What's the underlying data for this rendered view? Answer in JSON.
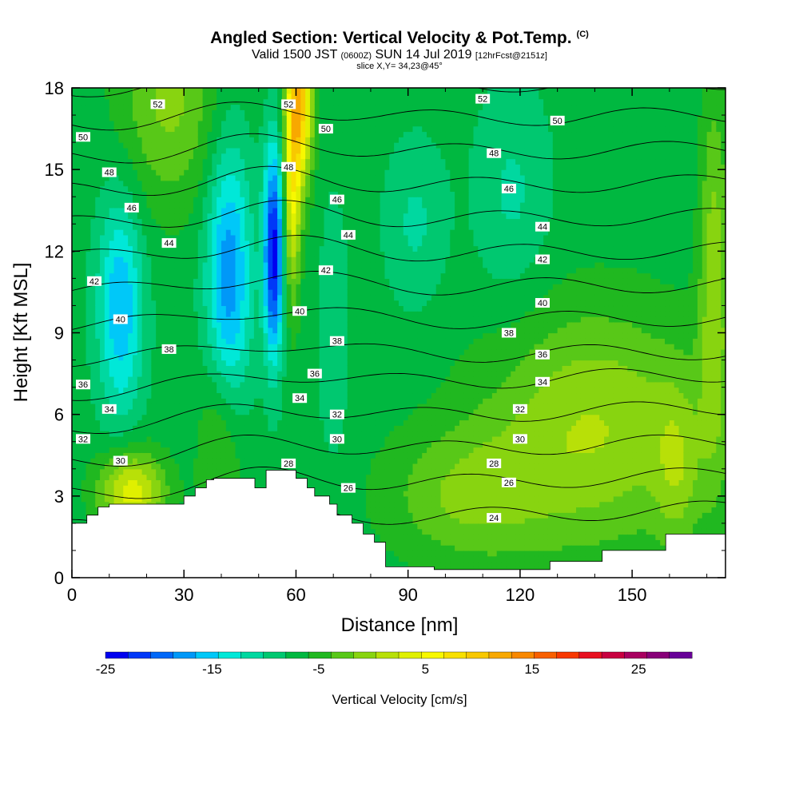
{
  "header": {
    "title": "Angled Section: Vertical Velocity & Pot.Temp.",
    "title_mark": "(C)",
    "valid_a": "Valid 1500 JST",
    "valid_b": "(0600Z)",
    "valid_c": "SUN 14 Jul 2019",
    "valid_d": "[12hrFcst@2151z]",
    "slice": "slice X,Y= 34,23@45°"
  },
  "chart_data": {
    "type": "heatmap",
    "xlabel": "Distance [nm]",
    "ylabel": "Height [Kft MSL]",
    "xlim": [
      0,
      175
    ],
    "ylim": [
      0,
      18
    ],
    "xticks": [
      0,
      30,
      60,
      90,
      120,
      150
    ],
    "yticks": [
      0,
      3,
      6,
      9,
      12,
      15,
      18
    ],
    "colorbar": {
      "label": "Vertical Velocity [cm/s]",
      "tick_labels": [
        "-25",
        "-15",
        "-5",
        "5",
        "15",
        "25"
      ],
      "tick_values": [
        -25,
        -15,
        -5,
        5,
        15,
        25
      ],
      "range": [
        -25,
        30
      ],
      "bin_width": 2.5,
      "colors": [
        "#0000f0",
        "#0038f8",
        "#0068f8",
        "#0098f8",
        "#00c8f8",
        "#00e8d8",
        "#00d8a0",
        "#00c870",
        "#00b840",
        "#20b820",
        "#58c818",
        "#88d410",
        "#b8e008",
        "#e0f000",
        "#f8f800",
        "#f8e000",
        "#f8c800",
        "#f8a800",
        "#f88800",
        "#f86000",
        "#f83800",
        "#e81020",
        "#c80040",
        "#a80060",
        "#880078",
        "#680098"
      ]
    },
    "terrain_profile": {
      "x": [
        0,
        4,
        4,
        7,
        7,
        10,
        10,
        30,
        30,
        33,
        33,
        36,
        36,
        38,
        38,
        49,
        49,
        52,
        52,
        60,
        60,
        63,
        63,
        65,
        65,
        69,
        69,
        71,
        71,
        75,
        75,
        78,
        78,
        81,
        81,
        84,
        84,
        97,
        97,
        128,
        128,
        142,
        142,
        159,
        159,
        175
      ],
      "y": [
        2,
        2,
        2.3,
        2.3,
        2.6,
        2.6,
        2.7,
        2.7,
        3.0,
        3.0,
        3.3,
        3.3,
        3.6,
        3.6,
        3.65,
        3.65,
        3.3,
        3.3,
        3.95,
        3.95,
        3.65,
        3.65,
        3.3,
        3.3,
        3.0,
        3.0,
        2.7,
        2.7,
        2.3,
        2.3,
        2.0,
        2.0,
        1.6,
        1.6,
        1.3,
        1.3,
        0.4,
        0.4,
        0.3,
        0.3,
        0.6,
        0.6,
        1.0,
        1.0,
        1.6,
        1.6
      ]
    },
    "theta_contours": {
      "levels": [
        24,
        26,
        28,
        30,
        32,
        34,
        36,
        38,
        40,
        42,
        44,
        46,
        48,
        50,
        52
      ],
      "interval": 2,
      "labels": [
        {
          "value": "24",
          "x": 113,
          "y": 2.2
        },
        {
          "value": "26",
          "x": 74,
          "y": 3.3
        },
        {
          "value": "26",
          "x": 117,
          "y": 3.5
        },
        {
          "value": "28",
          "x": 58,
          "y": 4.2
        },
        {
          "value": "28",
          "x": 113,
          "y": 4.2
        },
        {
          "value": "30",
          "x": 13,
          "y": 4.3
        },
        {
          "value": "30",
          "x": 71,
          "y": 5.1
        },
        {
          "value": "30",
          "x": 120,
          "y": 5.1
        },
        {
          "value": "32",
          "x": 3,
          "y": 5.1
        },
        {
          "value": "32",
          "x": 71,
          "y": 6.0
        },
        {
          "value": "32",
          "x": 120,
          "y": 6.2
        },
        {
          "value": "34",
          "x": 10,
          "y": 6.2
        },
        {
          "value": "34",
          "x": 61,
          "y": 6.6
        },
        {
          "value": "34",
          "x": 126,
          "y": 7.2
        },
        {
          "value": "36",
          "x": 3,
          "y": 7.1
        },
        {
          "value": "36",
          "x": 65,
          "y": 7.5
        },
        {
          "value": "36",
          "x": 126,
          "y": 8.2
        },
        {
          "value": "38",
          "x": 26,
          "y": 8.4
        },
        {
          "value": "38",
          "x": 71,
          "y": 8.7
        },
        {
          "value": "38",
          "x": 117,
          "y": 9.0
        },
        {
          "value": "40",
          "x": 13,
          "y": 9.5
        },
        {
          "value": "40",
          "x": 61,
          "y": 9.8
        },
        {
          "value": "40",
          "x": 126,
          "y": 10.1
        },
        {
          "value": "42",
          "x": 6,
          "y": 10.9
        },
        {
          "value": "42",
          "x": 68,
          "y": 11.3
        },
        {
          "value": "42",
          "x": 126,
          "y": 11.7
        },
        {
          "value": "44",
          "x": 26,
          "y": 12.3
        },
        {
          "value": "44",
          "x": 74,
          "y": 12.6
        },
        {
          "value": "44",
          "x": 126,
          "y": 12.9
        },
        {
          "value": "46",
          "x": 16,
          "y": 13.6
        },
        {
          "value": "46",
          "x": 71,
          "y": 13.9
        },
        {
          "value": "46",
          "x": 117,
          "y": 14.3
        },
        {
          "value": "48",
          "x": 10,
          "y": 14.9
        },
        {
          "value": "48",
          "x": 58,
          "y": 15.1
        },
        {
          "value": "48",
          "x": 113,
          "y": 15.6
        },
        {
          "value": "50",
          "x": 3,
          "y": 16.2
        },
        {
          "value": "50",
          "x": 68,
          "y": 16.5
        },
        {
          "value": "50",
          "x": 130,
          "y": 16.8
        },
        {
          "value": "52",
          "x": 23,
          "y": 17.4
        },
        {
          "value": "52",
          "x": 58,
          "y": 17.4
        },
        {
          "value": "52",
          "x": 110,
          "y": 17.6
        }
      ]
    },
    "features": [
      {
        "kind": "downdraft",
        "x": 54,
        "y": 12,
        "value": -25
      },
      {
        "kind": "downdraft",
        "x": 42,
        "y": 11,
        "value": -17
      },
      {
        "kind": "downdraft",
        "x": 13,
        "y": 10,
        "value": -15
      },
      {
        "kind": "updraft",
        "x": 60,
        "y": 17.5,
        "value": 18
      },
      {
        "kind": "updraft",
        "x": 22,
        "y": 17.5,
        "value": 12
      },
      {
        "kind": "updraft",
        "x": 14,
        "y": 3.2,
        "value": 15
      },
      {
        "kind": "updraft",
        "x": 138,
        "y": 3.8,
        "value": 10
      },
      {
        "kind": "updraft",
        "x": 140,
        "y": 7.0,
        "value": 8
      }
    ]
  }
}
